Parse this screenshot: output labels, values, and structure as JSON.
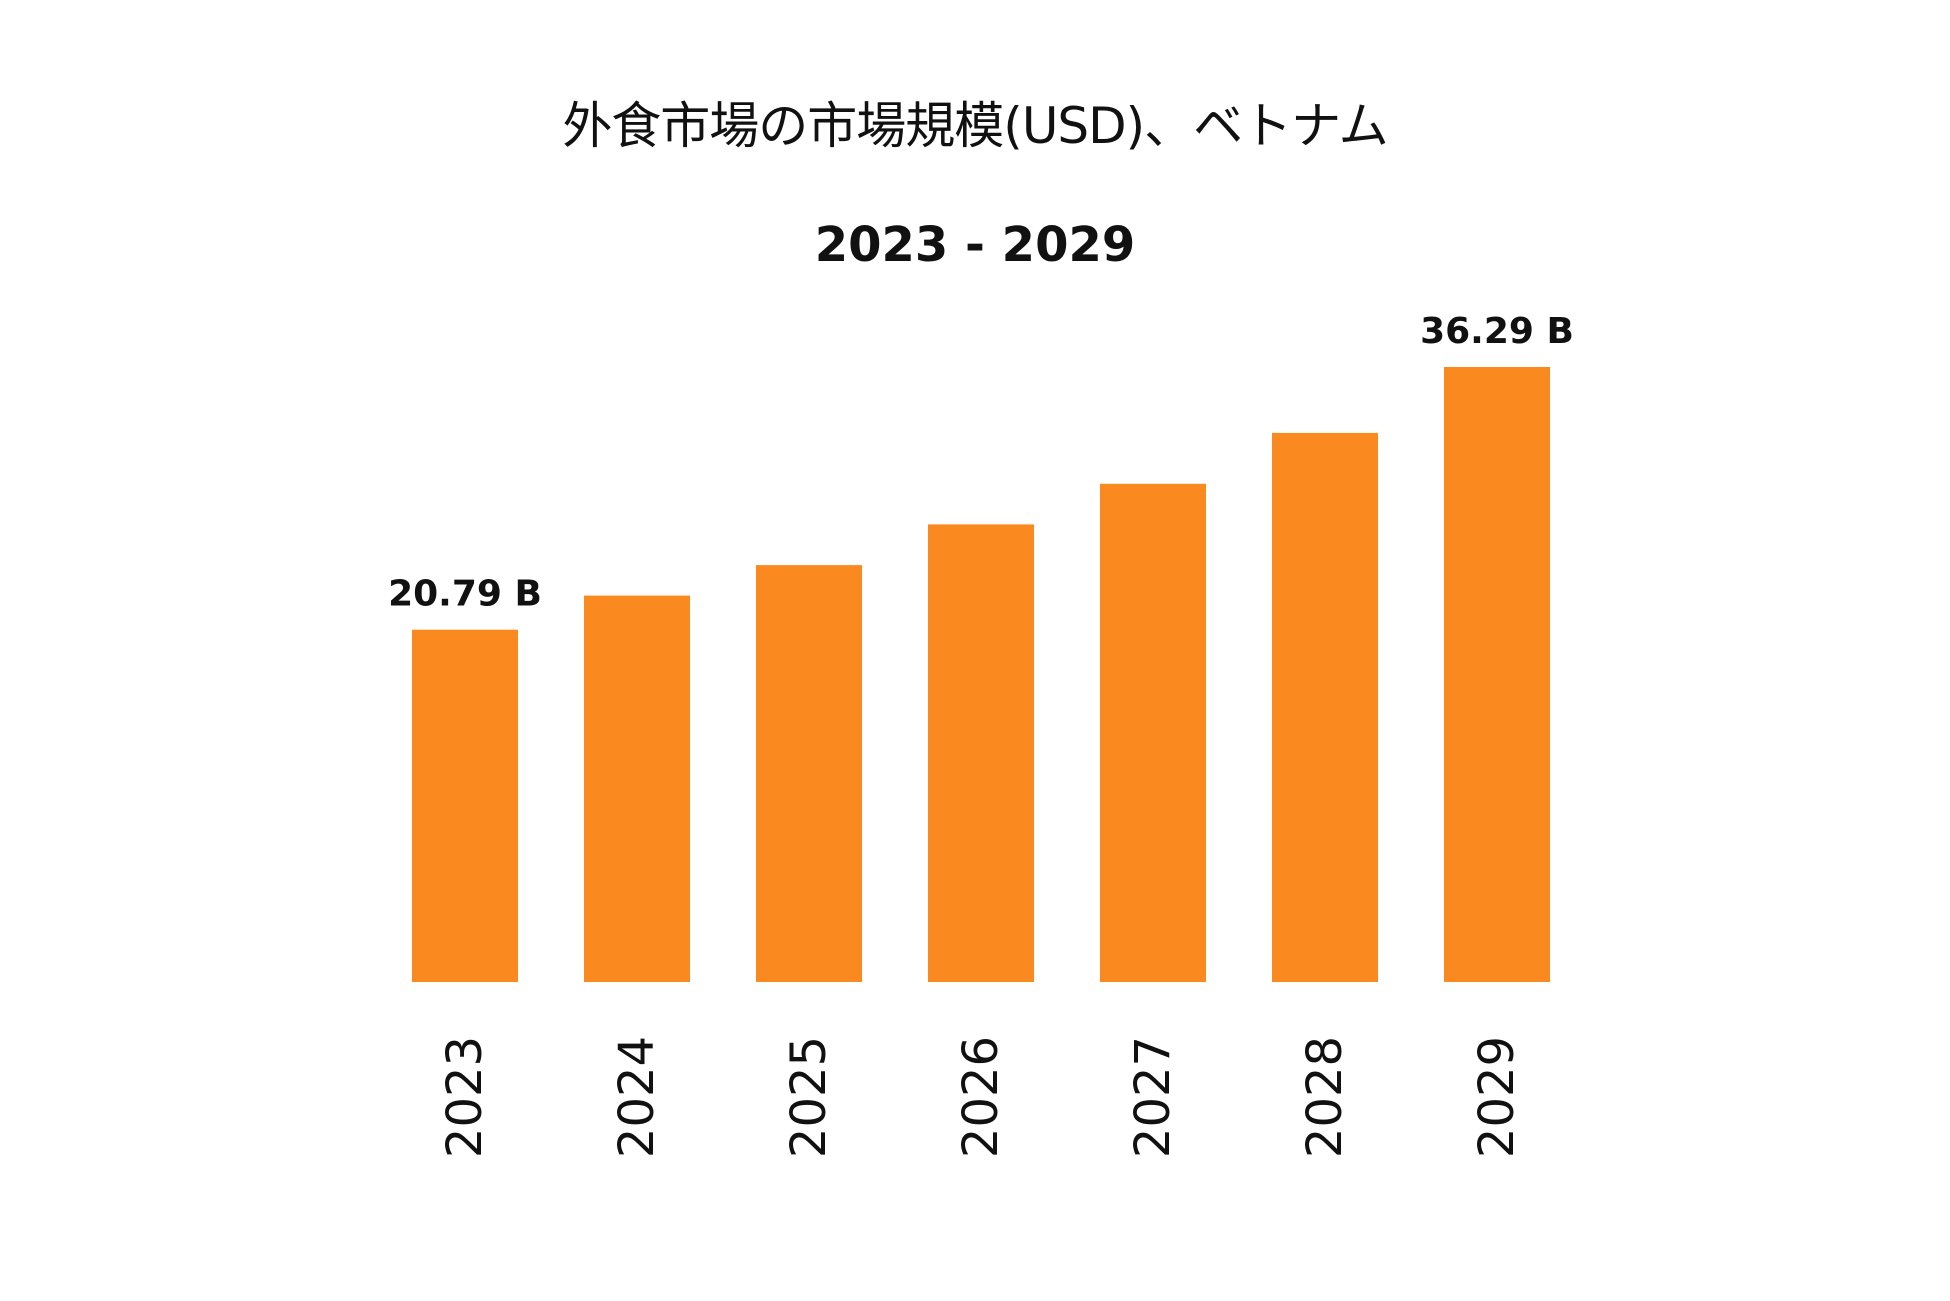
{
  "chart_data": {
    "type": "bar",
    "title": "外食市場の市場規模(USD)、ベトナム",
    "subtitle": "2023 - 2029",
    "categories": [
      "2023",
      "2024",
      "2025",
      "2026",
      "2027",
      "2028",
      "2029"
    ],
    "values": [
      20.79,
      22.8,
      24.6,
      27.0,
      29.4,
      32.4,
      36.29
    ],
    "data_labels": [
      {
        "category": "2023",
        "text": "20.79 B"
      },
      {
        "category": "2029",
        "text": "36.29 B"
      }
    ],
    "unit": "B",
    "ylim": [
      0,
      38
    ],
    "grid": false,
    "legend": "none",
    "bar_color": "#fa8a1f"
  }
}
